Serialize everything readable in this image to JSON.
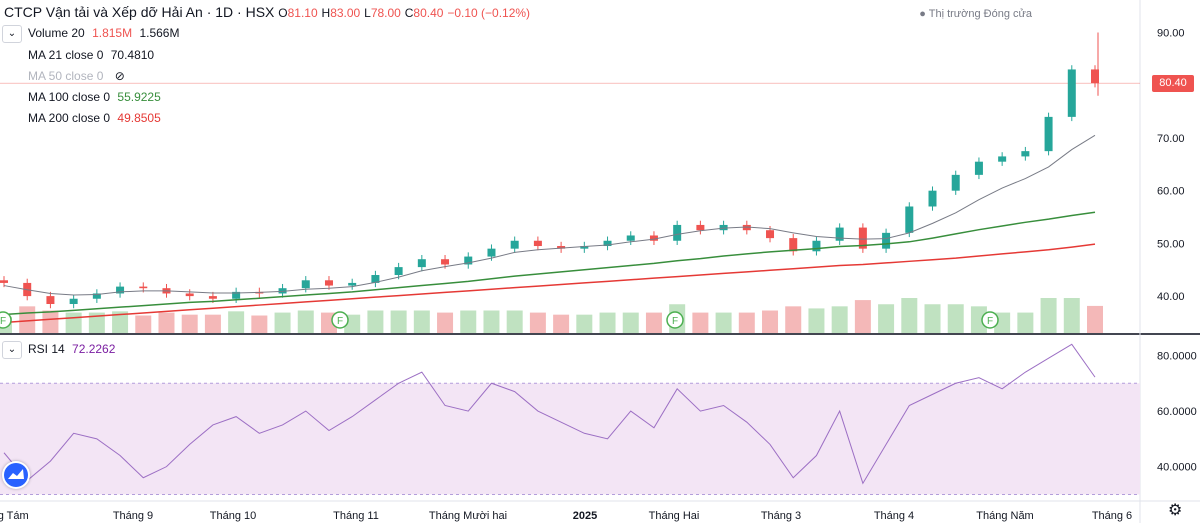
{
  "header": {
    "symbol": "CTCP Vận tải và Xếp dỡ Hải An · 1D · HSX",
    "open_label": "O",
    "open": "81.10",
    "high_label": "H",
    "high": "83.00",
    "low_label": "L",
    "low": "78.00",
    "close_label": "C",
    "close": "80.40",
    "change": "−0.10 (−0.12%)",
    "market_status": "Thị trường Đóng cửa"
  },
  "indicators": {
    "volume": {
      "label": "Volume 20",
      "v1": "1.815M",
      "v2": "1.566M"
    },
    "ma21": {
      "label": "MA 21 close 0",
      "value": "70.4810"
    },
    "ma50": {
      "label": "MA 50 close 0",
      "value": ""
    },
    "ma100": {
      "label": "MA 100 close 0",
      "value": "55.9225"
    },
    "ma200": {
      "label": "MA 200 close 0",
      "value": "49.8505"
    },
    "rsi": {
      "label": "RSI 14",
      "value": "72.2262"
    }
  },
  "last_price_tag": "80.40",
  "colors": {
    "up": "#26a69a",
    "down": "#ef5350",
    "ma21": "#787b86",
    "ma100": "#388e3c",
    "ma200": "#e53935",
    "rsi": "#9c6fc4",
    "rsi_band": "#f3e5f5",
    "volume_up": "#a5d6a7",
    "volume_down": "#ef9a9a"
  },
  "chart_data": [
    {
      "type": "candlestick",
      "y_ticks": [
        "90.00",
        "80.00",
        "70.00",
        "60.00",
        "50.00",
        "40.00"
      ],
      "ylim": [
        33,
        92
      ],
      "x_ticks": [
        "háng Tám",
        "Tháng 9",
        "Tháng 10",
        "Tháng 11",
        "Tháng Mười hai",
        "2025",
        "Tháng Hai",
        "Tháng 3",
        "Tháng 4",
        "Tháng Năm",
        "Tháng 6"
      ],
      "close_series": [
        {
          "x": "2024-07-20",
          "y": 42.5
        },
        {
          "x": "2024-07-26",
          "y": 40.0
        },
        {
          "x": "2024-08-02",
          "y": 38.5
        },
        {
          "x": "2024-08-09",
          "y": 39.5
        },
        {
          "x": "2024-08-16",
          "y": 40.5
        },
        {
          "x": "2024-08-23",
          "y": 41.8
        },
        {
          "x": "2024-08-30",
          "y": 41.5
        },
        {
          "x": "2024-09-06",
          "y": 40.5
        },
        {
          "x": "2024-09-13",
          "y": 40.0
        },
        {
          "x": "2024-09-20",
          "y": 39.5
        },
        {
          "x": "2024-09-27",
          "y": 40.8
        },
        {
          "x": "2024-10-04",
          "y": 40.5
        },
        {
          "x": "2024-10-11",
          "y": 41.5
        },
        {
          "x": "2024-10-18",
          "y": 43.0
        },
        {
          "x": "2024-10-25",
          "y": 42.0
        },
        {
          "x": "2024-11-01",
          "y": 42.5
        },
        {
          "x": "2024-11-08",
          "y": 44.0
        },
        {
          "x": "2024-11-15",
          "y": 45.5
        },
        {
          "x": "2024-11-22",
          "y": 47.0
        },
        {
          "x": "2024-11-29",
          "y": 46.0
        },
        {
          "x": "2024-12-06",
          "y": 47.5
        },
        {
          "x": "2024-12-13",
          "y": 49.0
        },
        {
          "x": "2024-12-20",
          "y": 50.5
        },
        {
          "x": "2024-12-27",
          "y": 49.5
        },
        {
          "x": "2025-01-03",
          "y": 49.0
        },
        {
          "x": "2025-01-10",
          "y": 49.5
        },
        {
          "x": "2025-01-17",
          "y": 50.5
        },
        {
          "x": "2025-01-24",
          "y": 51.5
        },
        {
          "x": "2025-02-07",
          "y": 50.5
        },
        {
          "x": "2025-02-14",
          "y": 53.5
        },
        {
          "x": "2025-02-21",
          "y": 52.5
        },
        {
          "x": "2025-02-28",
          "y": 53.5
        },
        {
          "x": "2025-03-07",
          "y": 52.5
        },
        {
          "x": "2025-03-14",
          "y": 51.0
        },
        {
          "x": "2025-03-21",
          "y": 48.5
        },
        {
          "x": "2025-03-28",
          "y": 50.5
        },
        {
          "x": "2025-04-04",
          "y": 53.0
        },
        {
          "x": "2025-04-11",
          "y": 49.0
        },
        {
          "x": "2025-04-18",
          "y": 52.0
        },
        {
          "x": "2025-04-25",
          "y": 57.0
        },
        {
          "x": "2025-05-02",
          "y": 60.0
        },
        {
          "x": "2025-05-09",
          "y": 63.0
        },
        {
          "x": "2025-05-16",
          "y": 65.5
        },
        {
          "x": "2025-05-23",
          "y": 66.5
        },
        {
          "x": "2025-05-30",
          "y": 67.5
        },
        {
          "x": "2025-06-06",
          "y": 74.0
        },
        {
          "x": "2025-06-13",
          "y": 83.0
        },
        {
          "x": "2025-06-18",
          "y": 80.4
        }
      ],
      "ma21": [
        42.0,
        41.2,
        40.5,
        40.2,
        40.3,
        40.8,
        41.0,
        41.0,
        40.8,
        40.6,
        40.6,
        40.7,
        40.9,
        41.3,
        41.5,
        41.8,
        42.6,
        43.6,
        44.8,
        45.6,
        46.3,
        47.2,
        48.3,
        48.8,
        49.1,
        49.4,
        49.7,
        50.3,
        50.8,
        51.7,
        52.4,
        52.9,
        53.1,
        52.8,
        52.0,
        51.3,
        51.0,
        50.8,
        50.9,
        52.0,
        53.8,
        55.8,
        58.3,
        60.5,
        62.3,
        64.5,
        67.8,
        70.5
      ],
      "ma100": [
        36.5,
        36.8,
        37.0,
        37.3,
        37.6,
        37.9,
        38.2,
        38.5,
        38.8,
        39.0,
        39.3,
        39.6,
        39.9,
        40.2,
        40.5,
        40.8,
        41.2,
        41.6,
        42.0,
        42.4,
        42.8,
        43.3,
        43.8,
        44.2,
        44.6,
        45.0,
        45.4,
        45.8,
        46.2,
        46.7,
        47.1,
        47.6,
        48.0,
        48.4,
        48.7,
        49.0,
        49.4,
        49.6,
        49.9,
        50.3,
        51.0,
        51.8,
        52.6,
        53.3,
        54.0,
        54.6,
        55.3,
        55.9
      ],
      "ma200": [
        35.0,
        35.3,
        35.6,
        35.9,
        36.2,
        36.5,
        36.8,
        37.1,
        37.4,
        37.7,
        38.0,
        38.3,
        38.6,
        38.9,
        39.2,
        39.5,
        39.8,
        40.1,
        40.4,
        40.7,
        41.0,
        41.3,
        41.6,
        41.9,
        42.2,
        42.5,
        42.8,
        43.1,
        43.4,
        43.7,
        44.0,
        44.3,
        44.6,
        44.9,
        45.2,
        45.5,
        45.8,
        46.0,
        46.3,
        46.6,
        46.9,
        47.2,
        47.6,
        48.0,
        48.4,
        48.8,
        49.3,
        49.85
      ],
      "last": {
        "open": 81.1,
        "high": 83.0,
        "low": 78.0,
        "close": 80.4
      }
    },
    {
      "type": "line",
      "name": "RSI 14",
      "y_ticks": [
        "80.0000",
        "60.0000",
        "40.0000"
      ],
      "ylim": [
        28,
        87
      ],
      "band": [
        30,
        70
      ],
      "values": [
        45,
        35,
        42,
        52,
        50,
        44,
        36,
        40,
        48,
        55,
        58,
        52,
        55,
        60,
        53,
        58,
        64,
        70,
        74,
        62,
        60,
        70,
        67,
        60,
        56,
        52,
        50,
        60,
        54,
        68,
        60,
        62,
        56,
        48,
        36,
        44,
        60,
        34,
        48,
        62,
        66,
        70,
        72,
        68,
        74,
        79,
        84,
        72.2
      ]
    }
  ]
}
